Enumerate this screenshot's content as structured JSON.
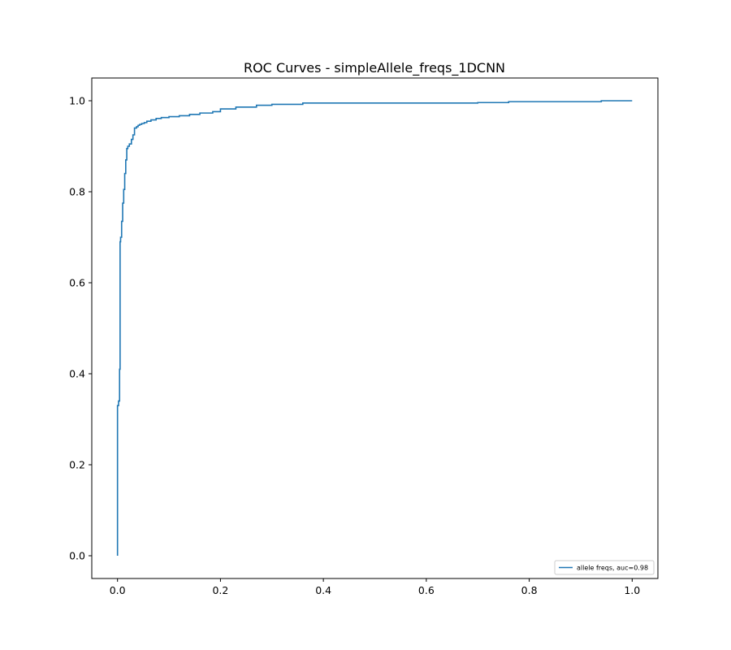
{
  "chart_data": {
    "type": "line",
    "title": "ROC Curves - simpleAllele_freqs_1DCNN",
    "xlabel": "",
    "ylabel": "",
    "xlim": [
      -0.05,
      1.05
    ],
    "ylim": [
      -0.05,
      1.05
    ],
    "grid": false,
    "legend": {
      "placement": "lower-right"
    },
    "x_ticks": [
      0.0,
      0.2,
      0.4,
      0.6,
      0.8,
      1.0
    ],
    "x_tick_labels": [
      "0.0",
      "0.2",
      "0.4",
      "0.6",
      "0.8",
      "1.0"
    ],
    "y_ticks": [
      0.0,
      0.2,
      0.4,
      0.6,
      0.8,
      1.0
    ],
    "y_tick_labels": [
      "0.0",
      "0.2",
      "0.4",
      "0.6",
      "0.8",
      "1.0"
    ],
    "series": [
      {
        "name": "allele freqs, auc=0.98",
        "color": "#1f77b4",
        "x": [
          0.0,
          0.0,
          0.002,
          0.002,
          0.004,
          0.004,
          0.005,
          0.005,
          0.006,
          0.006,
          0.008,
          0.008,
          0.01,
          0.01,
          0.012,
          0.012,
          0.014,
          0.014,
          0.016,
          0.016,
          0.018,
          0.018,
          0.02,
          0.02,
          0.023,
          0.023,
          0.027,
          0.027,
          0.03,
          0.03,
          0.033,
          0.033,
          0.037,
          0.037,
          0.04,
          0.04,
          0.043,
          0.043,
          0.047,
          0.047,
          0.052,
          0.052,
          0.057,
          0.057,
          0.065,
          0.065,
          0.075,
          0.075,
          0.085,
          0.085,
          0.1,
          0.1,
          0.12,
          0.12,
          0.14,
          0.14,
          0.16,
          0.16,
          0.185,
          0.185,
          0.2,
          0.2,
          0.23,
          0.23,
          0.27,
          0.27,
          0.3,
          0.3,
          0.36,
          0.36,
          0.7,
          0.7,
          0.76,
          0.76,
          0.94,
          0.94,
          1.0
        ],
        "y": [
          0.0,
          0.33,
          0.33,
          0.34,
          0.34,
          0.41,
          0.41,
          0.69,
          0.69,
          0.7,
          0.7,
          0.735,
          0.735,
          0.775,
          0.775,
          0.805,
          0.805,
          0.84,
          0.84,
          0.87,
          0.87,
          0.895,
          0.895,
          0.9,
          0.9,
          0.905,
          0.905,
          0.915,
          0.915,
          0.925,
          0.925,
          0.94,
          0.94,
          0.943,
          0.943,
          0.946,
          0.946,
          0.948,
          0.948,
          0.95,
          0.95,
          0.952,
          0.952,
          0.955,
          0.955,
          0.958,
          0.958,
          0.961,
          0.961,
          0.963,
          0.963,
          0.965,
          0.965,
          0.967,
          0.967,
          0.97,
          0.97,
          0.973,
          0.973,
          0.976,
          0.976,
          0.982,
          0.982,
          0.986,
          0.986,
          0.99,
          0.99,
          0.992,
          0.992,
          0.995,
          0.995,
          0.996,
          0.996,
          0.998,
          0.998,
          1.0,
          1.0
        ]
      }
    ]
  }
}
